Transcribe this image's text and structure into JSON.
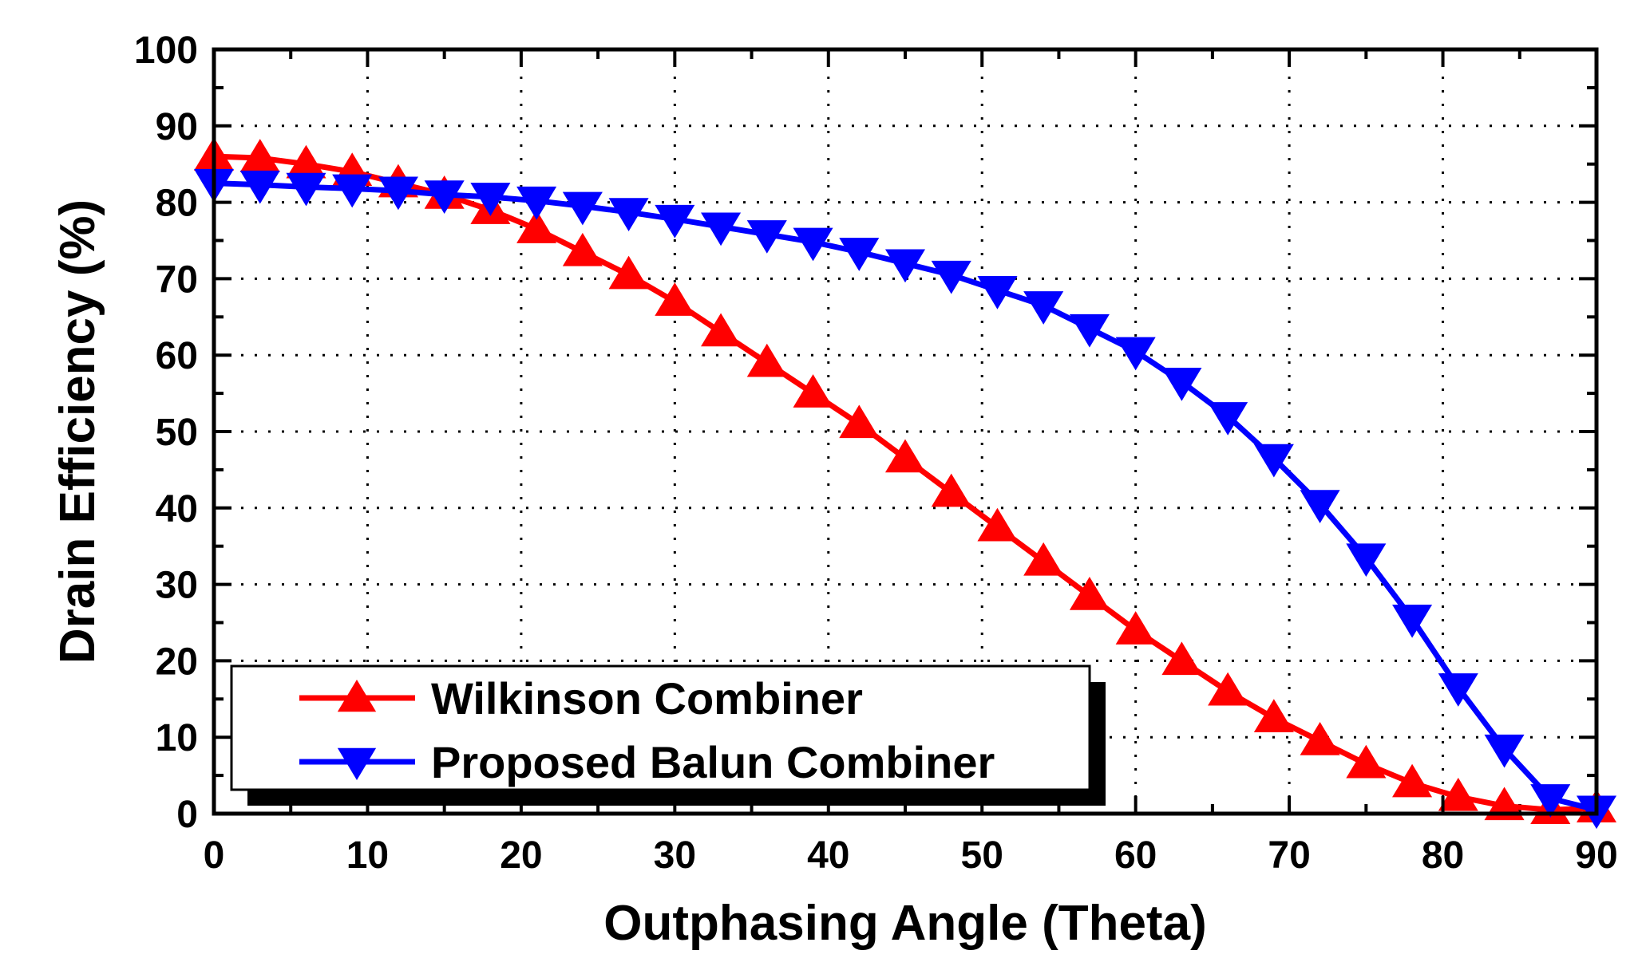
{
  "chart_data": {
    "type": "line",
    "xlabel": "Outphasing Angle (Theta)",
    "ylabel": "Drain Efficiency (%)",
    "xlim": [
      0,
      90
    ],
    "ylim": [
      0,
      100
    ],
    "xticks": [
      0,
      10,
      20,
      30,
      40,
      50,
      60,
      70,
      80,
      90
    ],
    "yticks": [
      0,
      10,
      20,
      30,
      40,
      50,
      60,
      70,
      80,
      90,
      100
    ],
    "xtick_labels": [
      "0",
      "10",
      "20",
      "30",
      "40",
      "50",
      "60",
      "70",
      "80",
      "90"
    ],
    "ytick_labels": [
      "0",
      "10",
      "20",
      "30",
      "40",
      "50",
      "60",
      "70",
      "80",
      "90",
      "100"
    ],
    "grid": true,
    "legend_position": "bottom-left",
    "series": [
      {
        "name": "Wilkinson Combiner",
        "color": "#ff0000",
        "marker": "triangle-up",
        "x": [
          0,
          3,
          6,
          9,
          12,
          15,
          18,
          21,
          24,
          27,
          30,
          33,
          36,
          39,
          42,
          45,
          48,
          51,
          54,
          57,
          60,
          63,
          66,
          69,
          72,
          75,
          78,
          81,
          84,
          87,
          90
        ],
        "y": [
          86,
          85.8,
          85,
          84,
          82.5,
          81,
          79,
          76.5,
          73.5,
          70.5,
          67,
          63,
          59,
          55,
          51,
          46.5,
          42,
          37.5,
          33,
          28.5,
          24,
          20,
          16,
          12.5,
          9.5,
          6.5,
          4,
          2.2,
          1,
          0.5,
          0.7
        ]
      },
      {
        "name": "Proposed Balun Combiner",
        "color": "#0000ff",
        "marker": "triangle-down",
        "x": [
          0,
          3,
          6,
          9,
          12,
          15,
          18,
          21,
          24,
          27,
          30,
          33,
          36,
          39,
          42,
          45,
          48,
          51,
          54,
          57,
          60,
          63,
          66,
          69,
          72,
          75,
          78,
          81,
          84,
          87,
          90
        ],
        "y": [
          82.5,
          82.3,
          82,
          81.8,
          81.5,
          81,
          80.7,
          80.2,
          79.5,
          78.7,
          77.8,
          76.8,
          75.8,
          74.8,
          73.5,
          72,
          70.5,
          68.5,
          66.5,
          63.5,
          60.5,
          56.5,
          52,
          46.5,
          40.5,
          33.5,
          25.5,
          16.5,
          8.5,
          2,
          0.5
        ]
      }
    ]
  }
}
